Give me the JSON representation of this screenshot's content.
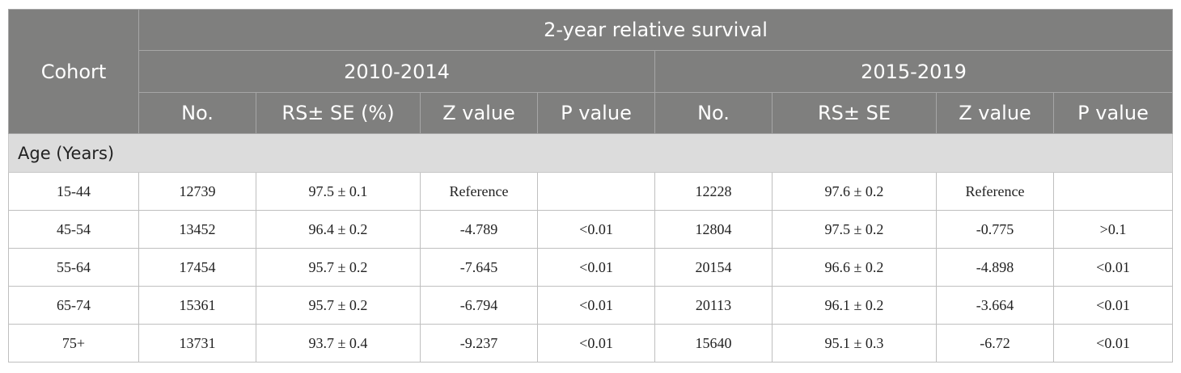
{
  "table": {
    "header": {
      "cohort": "Cohort",
      "title": "2-year relative survival",
      "period1": "2010-2014",
      "period2": "2015-2019",
      "columns": [
        "No.",
        "RS± SE (%)",
        "Z value",
        "P value",
        "No.",
        "RS± SE",
        "Z value",
        "P value"
      ]
    },
    "section_label": "Age (Years)",
    "rows": [
      [
        "15-44",
        "12739",
        "97.5 ± 0.1",
        "Reference",
        "",
        "12228",
        "97.6 ± 0.2",
        "Reference",
        ""
      ],
      [
        "45-54",
        "13452",
        "96.4 ± 0.2",
        "-4.789",
        "<0.01",
        "12804",
        "97.5 ± 0.2",
        "-0.775",
        ">0.1"
      ],
      [
        "55-64",
        "17454",
        "95.7 ± 0.2",
        "-7.645",
        "<0.01",
        "20154",
        "96.6 ± 0.2",
        "-4.898",
        "<0.01"
      ],
      [
        "65-74",
        "15361",
        "95.7 ± 0.2",
        "-6.794",
        "<0.01",
        "20113",
        "96.1 ± 0.2",
        "-3.664",
        "<0.01"
      ],
      [
        "75+",
        "13731",
        "93.7 ± 0.4",
        "-9.237",
        "<0.01",
        "15640",
        "95.1 ± 0.3",
        "-6.72",
        "<0.01"
      ]
    ]
  }
}
